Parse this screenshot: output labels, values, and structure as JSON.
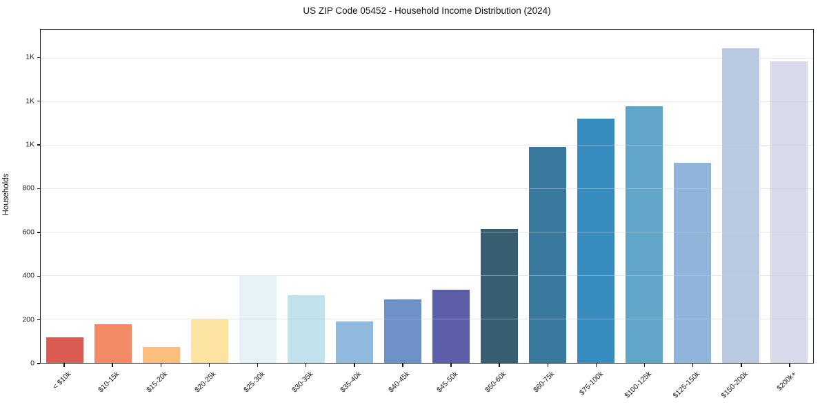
{
  "chart_data": {
    "type": "bar",
    "title": "US ZIP Code 05452 - Household Income Distribution (2024)",
    "xlabel": "",
    "ylabel": "Households",
    "categories": [
      "< $10k",
      "$10-15k",
      "$15-20k",
      "$20-25k",
      "$25-30k",
      "$30-35k",
      "$35-40k",
      "$40-45k",
      "$45-50k",
      "$50-60k",
      "$60-75k",
      "$75-100k",
      "$100-125k",
      "$125-150k",
      "$150-200k",
      "$200k+"
    ],
    "values": [
      118,
      178,
      74,
      200,
      400,
      310,
      190,
      290,
      335,
      615,
      990,
      1120,
      1180,
      920,
      1445,
      1385
    ],
    "bar_colors": [
      "#d95b52",
      "#f28a66",
      "#fabd7e",
      "#fce3a0",
      "#e6f2f5",
      "#c1e1ec",
      "#8fbade",
      "#6c90c8",
      "#5b5fa9",
      "#375d70",
      "#38789c",
      "#388cc0",
      "#5fa6c9",
      "#90b5da",
      "#b9c9e1",
      "#d7dae8"
    ],
    "ylim": [
      0,
      1530
    ],
    "yticks": [
      {
        "value": 0,
        "label": "0"
      },
      {
        "value": 200,
        "label": "200"
      },
      {
        "value": 400,
        "label": "400"
      },
      {
        "value": 600,
        "label": "600"
      },
      {
        "value": 800,
        "label": "800"
      },
      {
        "value": 1000,
        "label": "1K"
      },
      {
        "value": 1200,
        "label": "1K"
      },
      {
        "value": 1400,
        "label": "1K"
      }
    ],
    "grid": true,
    "grid_axis": "y",
    "legend": null
  },
  "style": {
    "background": "#ffffff",
    "axis_color": "#1c1c1c",
    "text_color": "#181818",
    "grid_color": "rgba(203,203,214,0.5)"
  }
}
